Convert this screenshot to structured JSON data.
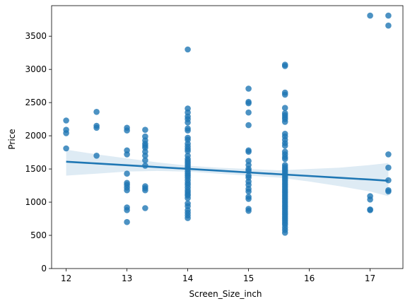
{
  "chart_data": {
    "type": "scatter",
    "title": "",
    "xlabel": "Screen_Size_inch",
    "ylabel": "Price",
    "xlim": [
      11.76,
      17.54
    ],
    "ylim": [
      0,
      3960
    ],
    "xticks": [
      12,
      13,
      14,
      15,
      16,
      17
    ],
    "yticks": [
      0,
      500,
      1000,
      1500,
      2000,
      2500,
      3000,
      3500
    ],
    "grid": false,
    "legend": "none",
    "colors": {
      "points": "#1f77b4",
      "line": "#1f77b4",
      "band": "#1f77b4"
    },
    "points": [
      [
        12,
        2230
      ],
      [
        12,
        2090
      ],
      [
        12,
        2040
      ],
      [
        12,
        1810
      ],
      [
        12.5,
        2360
      ],
      [
        12.5,
        2150
      ],
      [
        12.5,
        2120
      ],
      [
        12.5,
        1700
      ],
      [
        13,
        2120
      ],
      [
        13,
        2080
      ],
      [
        13,
        1780
      ],
      [
        13,
        1720
      ],
      [
        13,
        1430
      ],
      [
        13,
        1290
      ],
      [
        13,
        1260
      ],
      [
        13,
        1220
      ],
      [
        13,
        1180
      ],
      [
        13,
        920
      ],
      [
        13,
        880
      ],
      [
        13,
        700
      ],
      [
        13.3,
        2090
      ],
      [
        13.3,
        1990
      ],
      [
        13.3,
        1930
      ],
      [
        13.3,
        1880
      ],
      [
        13.3,
        1850
      ],
      [
        13.3,
        1820
      ],
      [
        13.3,
        1760
      ],
      [
        13.3,
        1700
      ],
      [
        13.3,
        1630
      ],
      [
        13.3,
        1550
      ],
      [
        13.3,
        1240
      ],
      [
        13.3,
        1210
      ],
      [
        13.3,
        1180
      ],
      [
        13.3,
        910
      ],
      [
        14,
        3300
      ],
      [
        14,
        2410
      ],
      [
        14,
        2350
      ],
      [
        14,
        2290
      ],
      [
        14,
        2250
      ],
      [
        14,
        2200
      ],
      [
        14,
        2110
      ],
      [
        14,
        2080
      ],
      [
        14,
        1970
      ],
      [
        14,
        1940
      ],
      [
        14,
        1880
      ],
      [
        14,
        1840
      ],
      [
        14,
        1800
      ],
      [
        14,
        1770
      ],
      [
        14,
        1700
      ],
      [
        14,
        1650
      ],
      [
        14,
        1620
      ],
      [
        14,
        1590
      ],
      [
        14,
        1560
      ],
      [
        14,
        1530
      ],
      [
        14,
        1500
      ],
      [
        14,
        1460
      ],
      [
        14,
        1430
      ],
      [
        14,
        1400
      ],
      [
        14,
        1370
      ],
      [
        14,
        1330
      ],
      [
        14,
        1290
      ],
      [
        14,
        1260
      ],
      [
        14,
        1220
      ],
      [
        14,
        1180
      ],
      [
        14,
        1150
      ],
      [
        14,
        1120
      ],
      [
        14,
        1100
      ],
      [
        14,
        1060
      ],
      [
        14,
        980
      ],
      [
        14,
        940
      ],
      [
        14,
        880
      ],
      [
        14,
        840
      ],
      [
        14,
        800
      ],
      [
        14,
        760
      ],
      [
        15,
        2710
      ],
      [
        15,
        2510
      ],
      [
        15,
        2490
      ],
      [
        15,
        2350
      ],
      [
        15,
        2160
      ],
      [
        15,
        1780
      ],
      [
        15,
        1760
      ],
      [
        15,
        1620
      ],
      [
        15,
        1560
      ],
      [
        15,
        1500
      ],
      [
        15,
        1470
      ],
      [
        15,
        1400
      ],
      [
        15,
        1370
      ],
      [
        15,
        1310
      ],
      [
        15,
        1260
      ],
      [
        15,
        1200
      ],
      [
        15,
        1160
      ],
      [
        15,
        1080
      ],
      [
        15,
        1050
      ],
      [
        15,
        900
      ],
      [
        15,
        870
      ],
      [
        15.6,
        3070
      ],
      [
        15.6,
        3050
      ],
      [
        15.6,
        2650
      ],
      [
        15.6,
        2620
      ],
      [
        15.6,
        2420
      ],
      [
        15.6,
        2340
      ],
      [
        15.6,
        2310
      ],
      [
        15.6,
        2280
      ],
      [
        15.6,
        2250
      ],
      [
        15.6,
        2210
      ],
      [
        15.6,
        2030
      ],
      [
        15.6,
        1990
      ],
      [
        15.6,
        1940
      ],
      [
        15.6,
        1890
      ],
      [
        15.6,
        1850
      ],
      [
        15.6,
        1760
      ],
      [
        15.6,
        1720
      ],
      [
        15.6,
        1680
      ],
      [
        15.6,
        1650
      ],
      [
        15.6,
        1560
      ],
      [
        15.6,
        1530
      ],
      [
        15.6,
        1500
      ],
      [
        15.6,
        1470
      ],
      [
        15.6,
        1440
      ],
      [
        15.6,
        1410
      ],
      [
        15.6,
        1380
      ],
      [
        15.6,
        1350
      ],
      [
        15.6,
        1320
      ],
      [
        15.6,
        1290
      ],
      [
        15.6,
        1260
      ],
      [
        15.6,
        1230
      ],
      [
        15.6,
        1200
      ],
      [
        15.6,
        1170
      ],
      [
        15.6,
        1140
      ],
      [
        15.6,
        1110
      ],
      [
        15.6,
        1080
      ],
      [
        15.6,
        1050
      ],
      [
        15.6,
        1020
      ],
      [
        15.6,
        990
      ],
      [
        15.6,
        960
      ],
      [
        15.6,
        930
      ],
      [
        15.6,
        900
      ],
      [
        15.6,
        870
      ],
      [
        15.6,
        840
      ],
      [
        15.6,
        810
      ],
      [
        15.6,
        780
      ],
      [
        15.6,
        750
      ],
      [
        15.6,
        720
      ],
      [
        15.6,
        690
      ],
      [
        15.6,
        660
      ],
      [
        15.6,
        620
      ],
      [
        15.6,
        580
      ],
      [
        15.6,
        540
      ],
      [
        17,
        3810
      ],
      [
        17,
        1090
      ],
      [
        17,
        1040
      ],
      [
        17,
        890
      ],
      [
        17,
        880
      ],
      [
        17.3,
        3810
      ],
      [
        17.3,
        3660
      ],
      [
        17.3,
        1720
      ],
      [
        17.3,
        1520
      ],
      [
        17.3,
        1330
      ],
      [
        17.3,
        1180
      ],
      [
        17.3,
        1160
      ]
    ],
    "regression": {
      "x": [
        12,
        12.5,
        13,
        13.5,
        14,
        14.5,
        15,
        15.5,
        16,
        16.5,
        17,
        17.3
      ],
      "y": [
        1610,
        1583,
        1556,
        1529,
        1502,
        1475,
        1448,
        1421,
        1394,
        1367,
        1340,
        1322
      ],
      "ci_low": [
        1400,
        1430,
        1460,
        1470,
        1460,
        1430,
        1400,
        1370,
        1310,
        1240,
        1160,
        1090
      ],
      "ci_high": [
        1790,
        1720,
        1660,
        1600,
        1550,
        1520,
        1500,
        1480,
        1500,
        1520,
        1560,
        1590
      ]
    }
  }
}
